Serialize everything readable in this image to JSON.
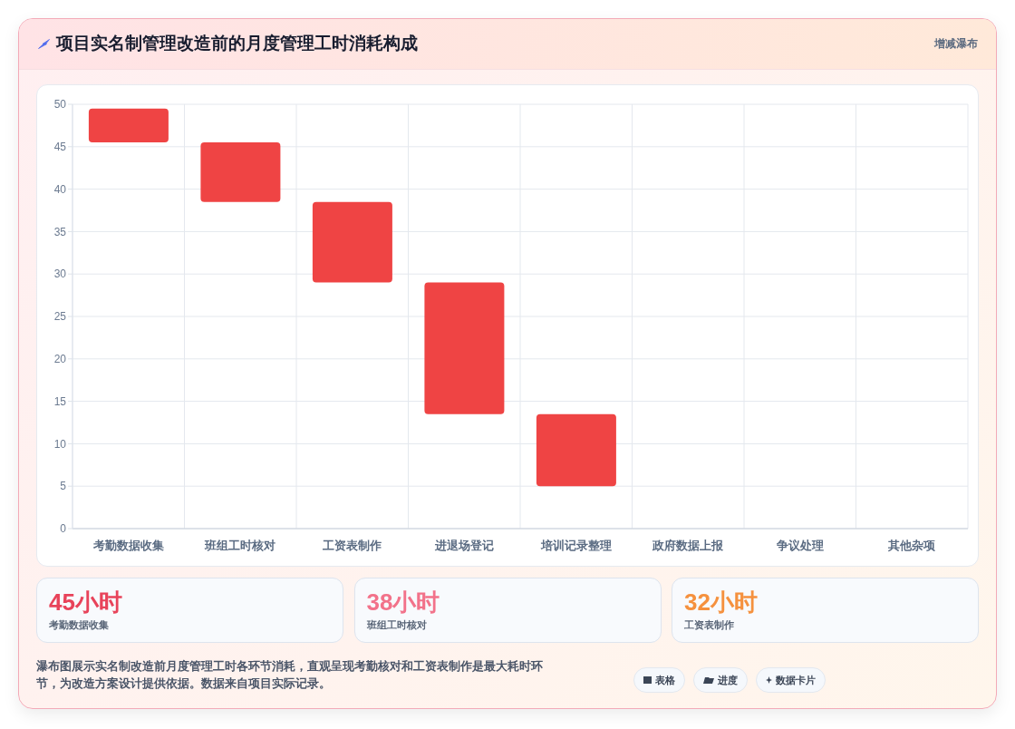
{
  "chart_data": {
    "type": "bar",
    "title": "项目实名制管理改造前的月度管理工时消耗构成",
    "categories": [
      "考勤数据收集",
      "班组工时核对",
      "工资表制作",
      "进退场登记",
      "培训记录整理",
      "政府数据上报",
      "争议处理",
      "其他杂项"
    ],
    "values": [
      4,
      7,
      9.5,
      15.5,
      8.5,
      null,
      null,
      null
    ],
    "base": [
      45.5,
      38.5,
      29,
      13.5,
      5,
      null,
      null,
      null
    ],
    "color": "#ef4444",
    "ylim": [
      0,
      50
    ],
    "yticks": [
      0,
      5,
      10,
      15,
      20,
      25,
      30,
      35,
      40,
      45,
      50
    ],
    "grid": true,
    "annotations": [
      "增减瀑布",
      "45小时",
      "考勤数据收集",
      "38小时",
      "班组工时核对",
      "32小时",
      "工资表制作",
      "瀑布图展示实名制改造前月度管理工时各环节消耗，直观呈现考勤核对和工资表制作是最大耗时环节，为改造方案设计提供依据。数据来自项目实际记录。",
      "表格",
      "进度",
      "数据卡片"
    ]
  }
}
